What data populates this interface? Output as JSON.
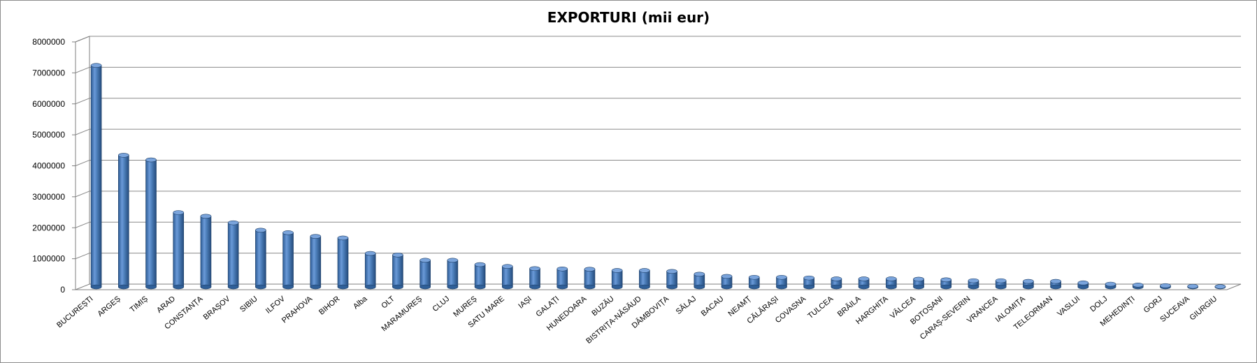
{
  "chart_data": {
    "type": "bar",
    "title": "EXPORTURI (mii eur)",
    "xlabel": "",
    "ylabel": "",
    "ylim": [
      0,
      8000000
    ],
    "yticks": [
      0,
      1000000,
      2000000,
      3000000,
      4000000,
      5000000,
      6000000,
      7000000,
      8000000
    ],
    "ytick_labels": [
      "0",
      "1000000",
      "2000000",
      "3000000",
      "4000000",
      "5000000",
      "6000000",
      "7000000",
      "8000000"
    ],
    "grid": true,
    "legend": "none",
    "bar_color": "#4f81bd",
    "categories": [
      "BUCUREȘTI",
      "ARGEȘ",
      "TIMIȘ",
      "ARAD",
      "CONSTANȚA",
      "BRAȘOV",
      "SIBIU",
      "ILFOV",
      "PRAHOVA",
      "BIHOR",
      "Alba",
      "OLT",
      "MARAMUREȘ",
      "CLUJ",
      "MUREȘ",
      "SATU MARE",
      "IAȘI",
      "GALAȚI",
      "HUNEDOARA",
      "BUZĂU",
      "BISTRIȚA-NĂSĂUD",
      "DÂMBOVIȚA",
      "SĂLAJ",
      "BACAU",
      "NEAMȚ",
      "CĂLĂRAȘI",
      "COVASNA",
      "TULCEA",
      "BRĂILA",
      "HARGHITA",
      "VÂLCEA",
      "BOTOȘANI",
      "CARAȘ-SEVERIN",
      "VRANCEA",
      "IALOMIȚA",
      "TELEORMAN",
      "VASLUI",
      "DOLJ",
      "MEHEDINȚI",
      "GORJ",
      "SUCEAVA",
      "GIURGIU"
    ],
    "values": [
      7150000,
      4250000,
      4100000,
      2400000,
      2280000,
      2070000,
      1830000,
      1750000,
      1630000,
      1580000,
      1080000,
      1030000,
      860000,
      860000,
      720000,
      660000,
      590000,
      580000,
      570000,
      530000,
      530000,
      500000,
      410000,
      340000,
      310000,
      310000,
      290000,
      260000,
      260000,
      260000,
      250000,
      230000,
      200000,
      200000,
      180000,
      180000,
      130000,
      90000,
      60000,
      40000,
      20000,
      10000
    ]
  }
}
